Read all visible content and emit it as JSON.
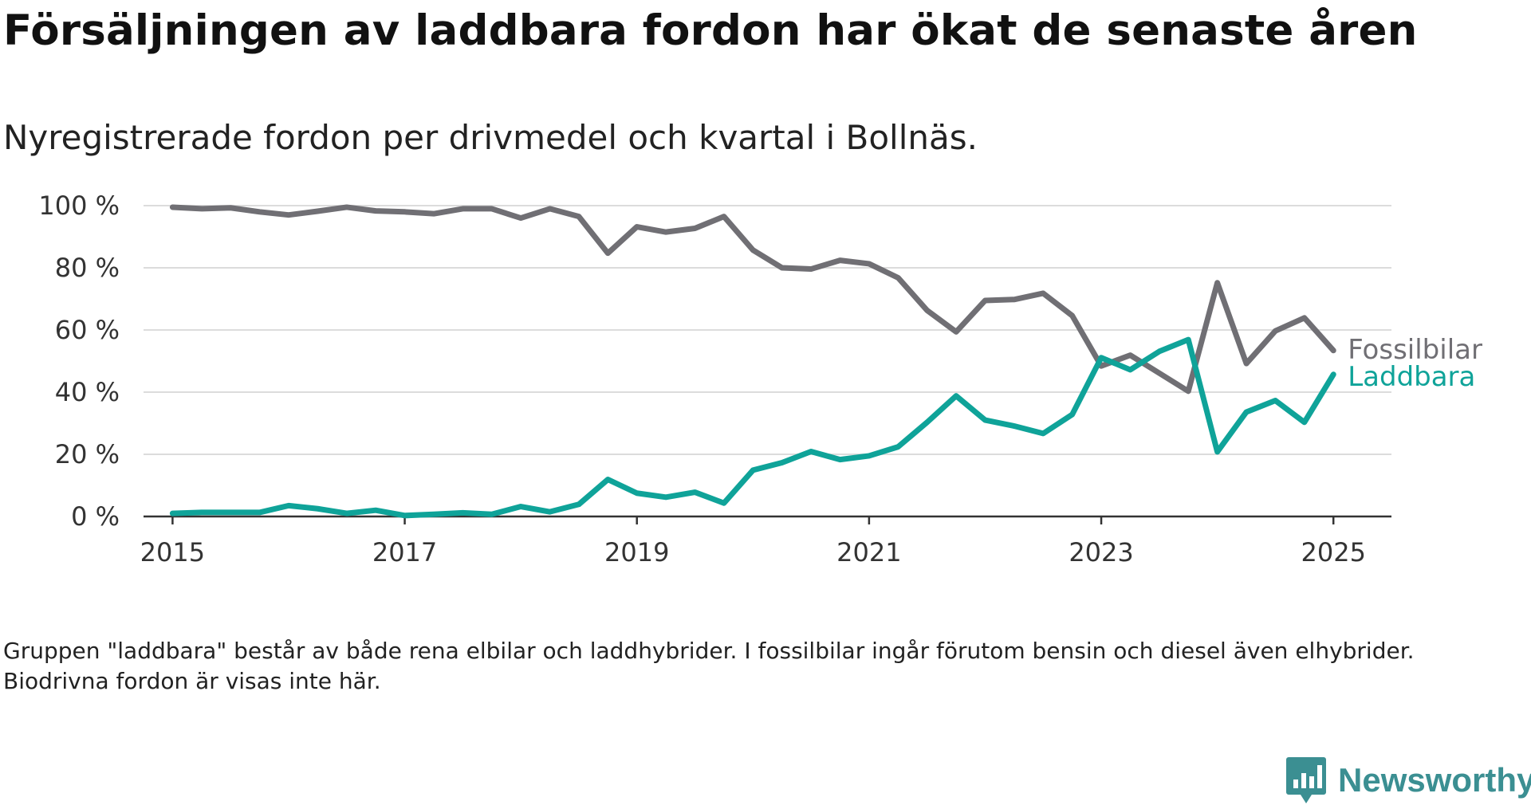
{
  "chart_data": {
    "type": "line",
    "title": "Försäljningen av laddbara fordon har ökat de senaste åren",
    "subtitle": "Nyregistrerade fordon per drivmedel och kvartal i Bollnäs.",
    "xlabel": "",
    "ylabel": "",
    "xlim": [
      2014.75,
      2025.5
    ],
    "ylim": [
      0,
      100
    ],
    "x_ticks": [
      2015,
      2017,
      2019,
      2021,
      2023,
      2025
    ],
    "y_ticks": [
      0,
      20,
      40,
      60,
      80,
      100
    ],
    "y_tick_labels": [
      "0 %",
      "20 %",
      "40 %",
      "60 %",
      "80 %",
      "100 %"
    ],
    "grid": "horizontal",
    "legend_placement": "inline-right",
    "x": [
      2015,
      2015.25,
      2015.5,
      2015.75,
      2016,
      2016.25,
      2016.5,
      2016.75,
      2017,
      2017.25,
      2017.5,
      2017.75,
      2018,
      2018.25,
      2018.5,
      2018.75,
      2019,
      2019.25,
      2019.5,
      2019.75,
      2020,
      2020.25,
      2020.5,
      2020.75,
      2021,
      2021.25,
      2021.5,
      2021.75,
      2022,
      2022.25,
      2022.5,
      2022.75,
      2023,
      2023.25,
      2023.5,
      2023.75,
      2024,
      2024.25,
      2024.5,
      2024.75,
      2025
    ],
    "series": [
      {
        "name": "Fossilbilar",
        "color": "#706f74",
        "values": [
          99.5,
          99,
          99.3,
          98,
          97,
          98.2,
          99.5,
          98.3,
          98,
          97.4,
          99,
          99,
          96,
          99,
          96.5,
          84.7,
          93.2,
          91.5,
          92.7,
          96.5,
          85.7,
          80,
          79.6,
          82.4,
          81.3,
          76.8,
          66.3,
          59.4,
          69.5,
          69.8,
          71.8,
          64.6,
          48.4,
          51.9,
          46.1,
          40.3,
          75.2,
          49.2,
          59.7,
          63.9,
          53.4
        ]
      },
      {
        "name": "Laddbara",
        "color": "#0fa399",
        "values": [
          1,
          1.3,
          1.3,
          1.3,
          3.5,
          2.5,
          1,
          2,
          0.3,
          0.7,
          1.2,
          0.7,
          3.2,
          1.5,
          3.9,
          11.9,
          7.5,
          6.2,
          7.8,
          4.3,
          14.9,
          17.3,
          20.9,
          18.3,
          19.5,
          22.4,
          30.3,
          38.8,
          31,
          29.1,
          26.7,
          32.8,
          51.1,
          47.2,
          53.1,
          56.9,
          20.8,
          33.6,
          37.3,
          30.3,
          45.7
        ]
      }
    ]
  },
  "footnote": "Gruppen \"laddbara\" består av både rena elbilar och laddhybrider. I fossilbilar ingår förutom bensin och diesel även elhybrider. Biodrivna fordon är visas inte här.",
  "brand": {
    "name": "Newsworthy",
    "icon": "newsworthy-logo-icon",
    "color": "#3b8f92"
  }
}
